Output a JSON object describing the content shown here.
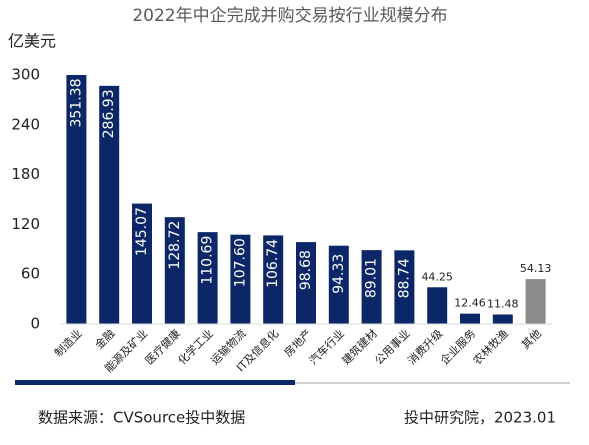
{
  "chart_data": {
    "type": "bar",
    "title": "2022年中企完成并购交易按行业规模分布",
    "y_label": "亿美元",
    "categories": [
      "制造业",
      "金融",
      "能源及矿业",
      "医疗健康",
      "化学工业",
      "运输物流",
      "IT及信息化",
      "房地产",
      "汽车行业",
      "建筑建材",
      "公用事业",
      "消费升级",
      "企业服务",
      "农林牧渔",
      "其他"
    ],
    "values": [
      351.38,
      286.93,
      145.07,
      128.72,
      110.69,
      107.6,
      106.74,
      98.68,
      94.33,
      89.01,
      88.74,
      44.25,
      12.46,
      11.48,
      54.13
    ],
    "value_labels": [
      "351.38",
      "286.93",
      "145.07",
      "128.72",
      "110.69",
      "107.60",
      "106.74",
      "98.68",
      "94.33",
      "89.01",
      "88.74",
      "44.25",
      "12.46",
      "11.48",
      "54.13"
    ],
    "colors": [
      "#0c2768",
      "#0c2768",
      "#0c2768",
      "#0c2768",
      "#0c2768",
      "#0c2768",
      "#0c2768",
      "#0c2768",
      "#0c2768",
      "#0c2768",
      "#0c2768",
      "#0c2768",
      "#0c2768",
      "#0c2768",
      "#8c8c8c"
    ],
    "ylim": [
      0,
      300
    ],
    "yticks": [
      0,
      60,
      120,
      180,
      240,
      300
    ],
    "grid": false,
    "source": "数据来源：CVSource投中数据",
    "credit": "投中研究院，2023.01"
  }
}
